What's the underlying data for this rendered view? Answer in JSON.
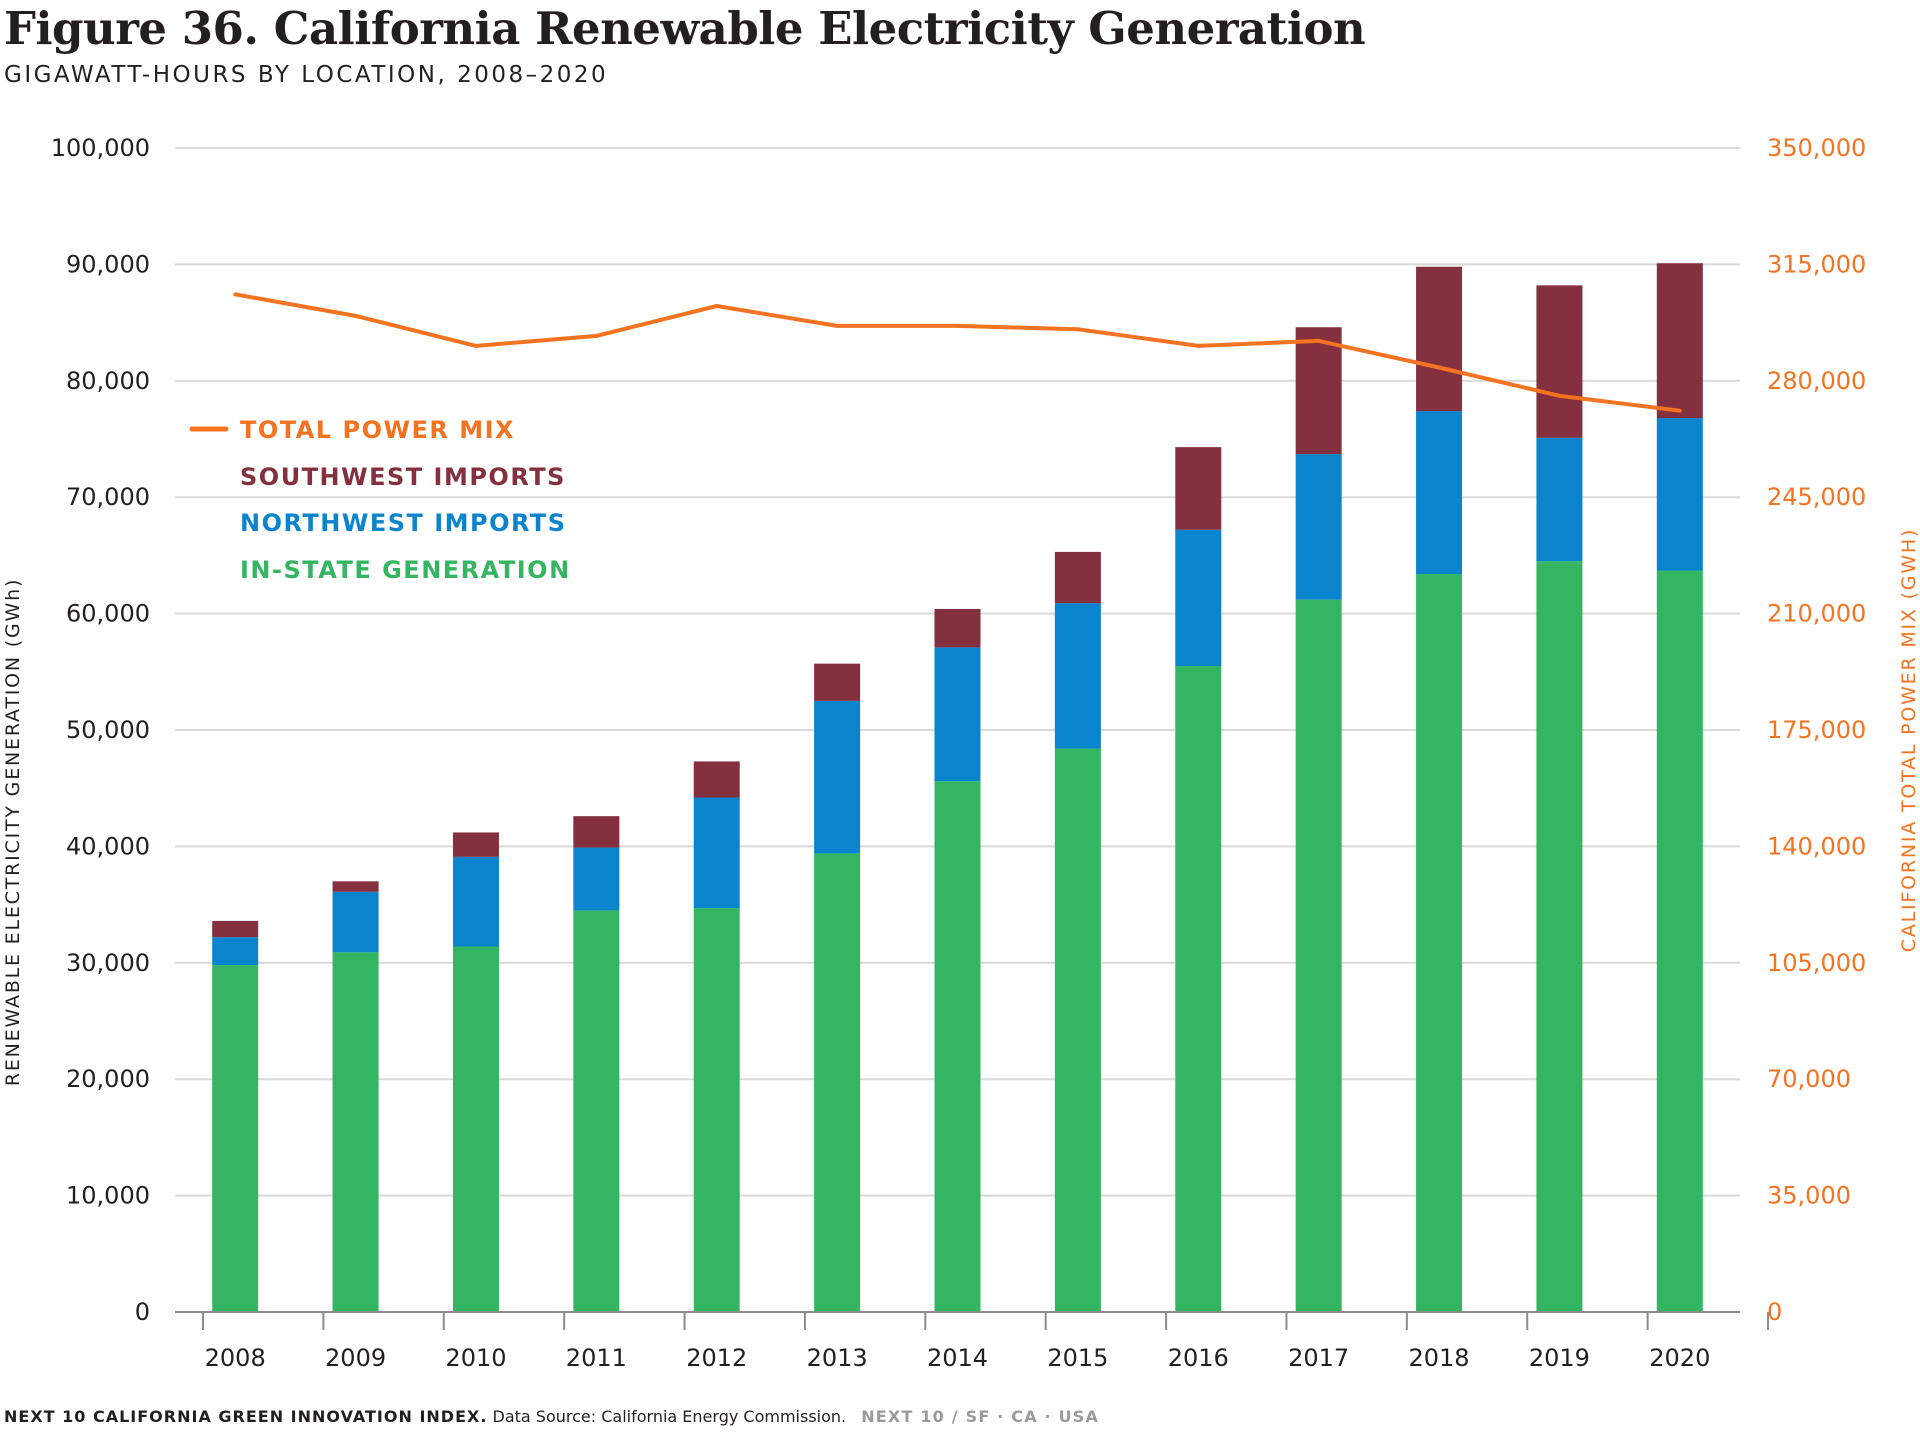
{
  "header": {
    "title": "Figure 36. California Renewable Electricity Generation",
    "subtitle": "GIGAWATT-HOURS BY LOCATION, 2008–2020"
  },
  "footer": {
    "index": "NEXT 10 CALIFORNIA GREEN INNOVATION INDEX.",
    "source": "Data Source: California Energy Commission.",
    "org": "NEXT 10  /  SF · CA · USA"
  },
  "colors": {
    "in_state": "#33b561",
    "northwest": "#0a84cc",
    "southwest": "#85303f",
    "total_line": "#f47321",
    "grid": "#d9d9d9",
    "axis": "#8c8c8c"
  },
  "chart_data": {
    "type": "bar",
    "stacked": true,
    "categories": [
      "2008",
      "2009",
      "2010",
      "2011",
      "2012",
      "2013",
      "2014",
      "2015",
      "2016",
      "2017",
      "2018",
      "2019",
      "2020"
    ],
    "ylabel": "RENEWABLE ELECTRICITY GENERATION (GWh)",
    "ylim": [
      0,
      100000
    ],
    "yticks": [
      0,
      10000,
      20000,
      30000,
      40000,
      50000,
      60000,
      70000,
      80000,
      90000,
      100000
    ],
    "ytick_labels": [
      "0",
      "10,000",
      "20,000",
      "30,000",
      "40,000",
      "50,000",
      "60,000",
      "70,000",
      "80,000",
      "90,000",
      "100,000"
    ],
    "y2label": "CALIFORNIA TOTAL POWER MIX (GWH)",
    "y2lim": [
      0,
      350000
    ],
    "y2ticks": [
      0,
      35000,
      70000,
      105000,
      140000,
      175000,
      210000,
      245000,
      280000,
      315000,
      350000
    ],
    "y2tick_labels": [
      "0",
      "35,000",
      "70,000",
      "105,000",
      "140,000",
      "175,000",
      "210,000",
      "245,000",
      "280,000",
      "315,000",
      "350,000"
    ],
    "grid": true,
    "legend_position": "upper-left",
    "series": [
      {
        "name": "IN-STATE GENERATION",
        "kind": "bar",
        "axis": "left",
        "values": [
          29800,
          30900,
          31400,
          34500,
          34700,
          39400,
          45600,
          48400,
          55500,
          61200,
          63400,
          64500,
          63700
        ]
      },
      {
        "name": "NORTHWEST IMPORTS",
        "kind": "bar",
        "axis": "left",
        "values": [
          2400,
          5200,
          7700,
          5400,
          9500,
          13100,
          11500,
          12500,
          11700,
          12500,
          14000,
          10600,
          13100
        ]
      },
      {
        "name": "SOUTHWEST IMPORTS",
        "kind": "bar",
        "axis": "left",
        "values": [
          1400,
          900,
          2100,
          2700,
          3100,
          3200,
          3300,
          4400,
          7100,
          10900,
          12400,
          13100,
          13300
        ]
      },
      {
        "name": "TOTAL POWER MIX",
        "kind": "line",
        "axis": "right",
        "values": [
          306000,
          299500,
          290500,
          293500,
          302500,
          296500,
          296500,
          295500,
          290500,
          292000,
          284000,
          275500,
          271000
        ]
      }
    ],
    "legend_order": [
      "TOTAL POWER MIX",
      "SOUTHWEST IMPORTS",
      "NORTHWEST IMPORTS",
      "IN-STATE GENERATION"
    ]
  }
}
